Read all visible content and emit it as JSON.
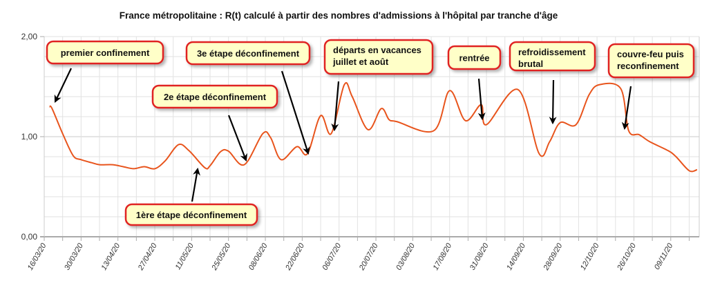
{
  "chart_data": {
    "type": "line",
    "title": "France métropolitaine : R(t) calculé à partir des nombres d'admissions à l'hôpital par tranche d'âge",
    "xlabel": "",
    "ylabel": "",
    "ylim": [
      0,
      2
    ],
    "y_ticks": [
      "0,00",
      "1,00",
      "2,00"
    ],
    "x_tick_labels": [
      "16/03/20",
      "30/03/20",
      "13/04/20",
      "27/04/20",
      "11/05/20",
      "25/05/20",
      "08/06/20",
      "22/06/20",
      "06/07/20",
      "20/07/20",
      "03/08/20",
      "17/08/20",
      "31/08/20",
      "14/09/20",
      "28/09/20",
      "12/10/20",
      "26/10/20",
      "09/11/20"
    ],
    "x_unit": "days since 16/03/20",
    "grid": true,
    "line_color": "#e8541c",
    "series": [
      {
        "name": "R(t)",
        "x": [
          2,
          3,
          7,
          11,
          14,
          18,
          21,
          26,
          30,
          34,
          38,
          42,
          46,
          51,
          55,
          61,
          63,
          67,
          70,
          76,
          83,
          86,
          90,
          96,
          100,
          105,
          109,
          114,
          117,
          123,
          128,
          131,
          134,
          148,
          154,
          160,
          166,
          168,
          180,
          188,
          192,
          196,
          202,
          207,
          211,
          219,
          222,
          226,
          230,
          237,
          240,
          245,
          248
        ],
        "values": [
          1.3,
          1.28,
          1.03,
          0.81,
          0.77,
          0.74,
          0.72,
          0.72,
          0.7,
          0.68,
          0.7,
          0.68,
          0.76,
          0.92,
          0.86,
          0.69,
          0.71,
          0.85,
          0.855,
          0.72,
          1.03,
          0.99,
          0.77,
          0.9,
          0.83,
          1.21,
          1.03,
          1.52,
          1.4,
          1.07,
          1.28,
          1.17,
          1.15,
          1.06,
          1.46,
          1.16,
          1.32,
          1.12,
          1.47,
          0.83,
          0.95,
          1.14,
          1.12,
          1.42,
          1.52,
          1.48,
          1.06,
          1.02,
          0.95,
          0.86,
          0.8,
          0.66,
          0.67
        ]
      }
    ],
    "annotations": [
      {
        "text": "premier confinement"
      },
      {
        "text": "1ère étape déconfinement"
      },
      {
        "text": "2e étape déconfinement"
      },
      {
        "text": "3e étape déconfinement"
      },
      {
        "text": "départs en vacances",
        "text2": "juillet et août"
      },
      {
        "text": "rentrée"
      },
      {
        "text": "refroidissement",
        "text2": "brutal"
      },
      {
        "text": "couvre-feu puis",
        "text2": "reconfinement"
      }
    ]
  }
}
